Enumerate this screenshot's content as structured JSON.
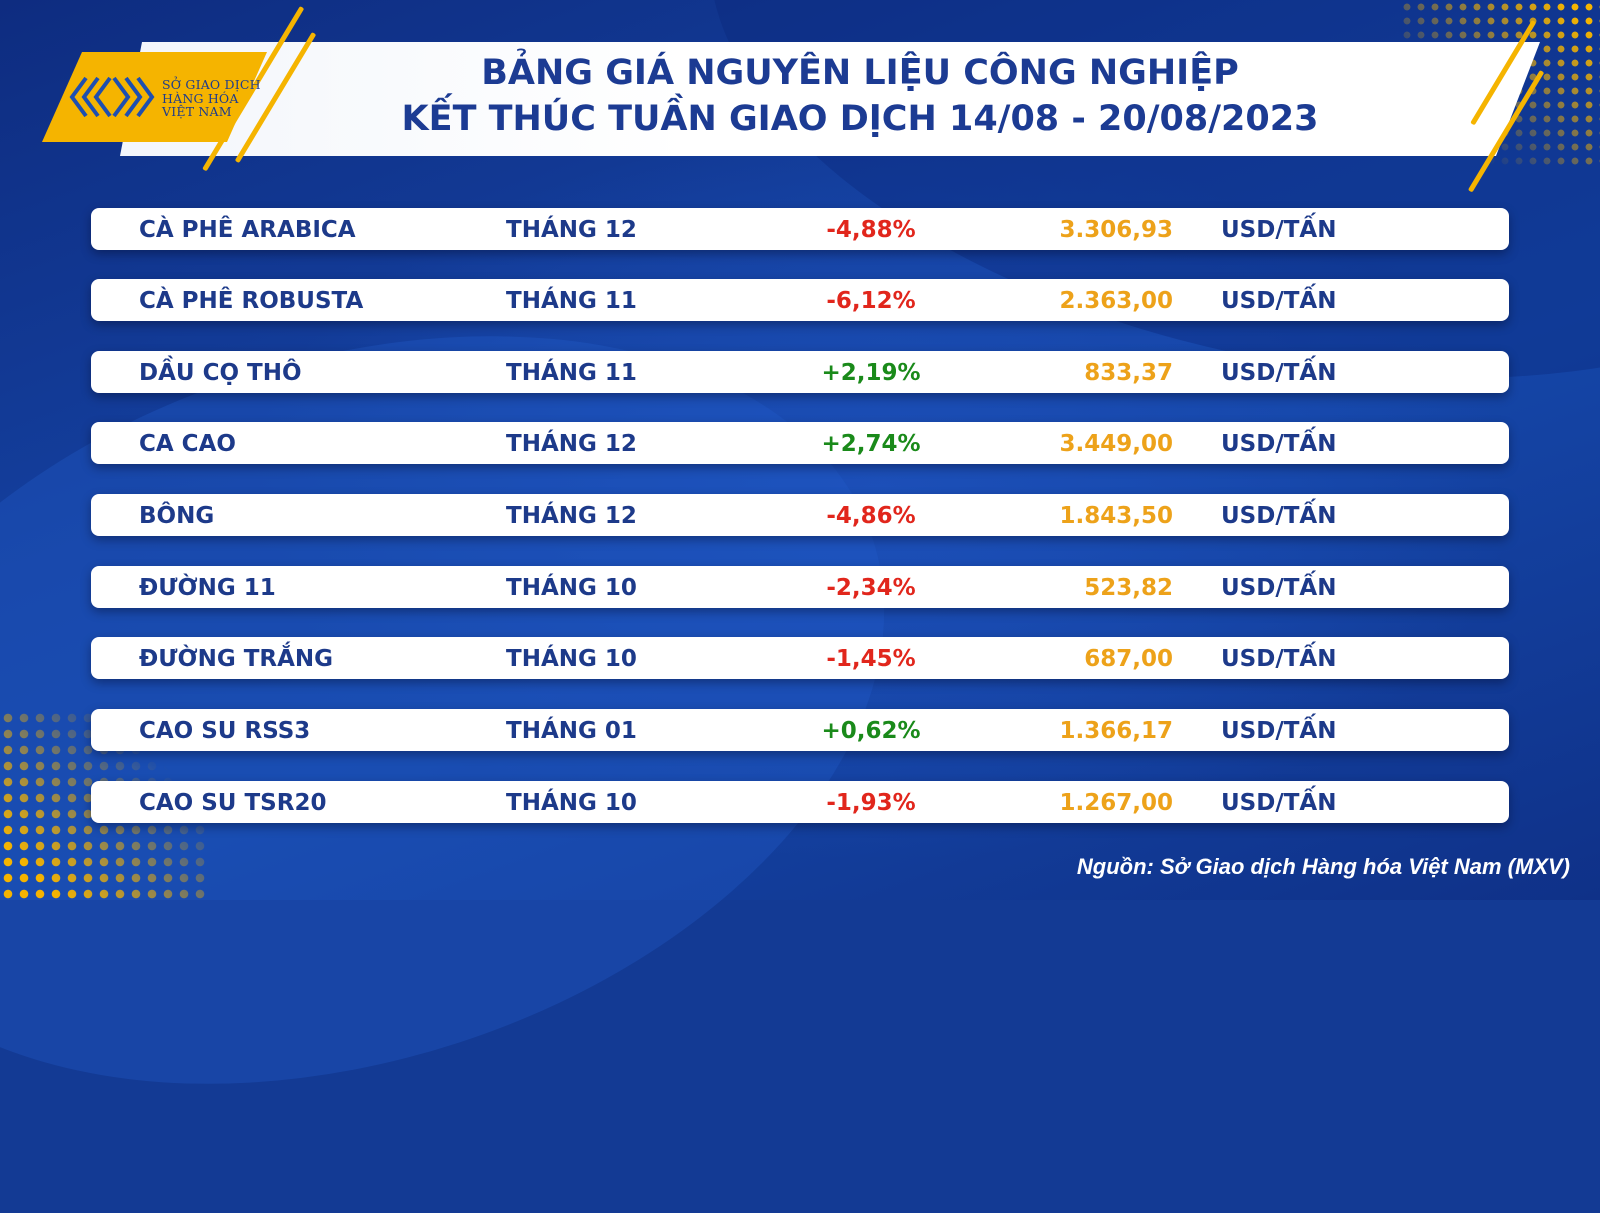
{
  "header": {
    "logo_lines": [
      "SỞ GIAO DỊCH",
      "HÀNG HÓA",
      "VIỆT NAM"
    ],
    "title_line1": "BẢNG GIÁ NGUYÊN LIỆU CÔNG NGHIỆP",
    "title_line2": "KẾT THÚC TUẦN GIAO DỊCH 14/08 - 20/08/2023"
  },
  "table": {
    "rows": [
      {
        "name": "CÀ PHÊ ARABICA",
        "month": "THÁNG 12",
        "change": "-4,88%",
        "direction": "down",
        "price": "3.306,93",
        "unit": "USD/TẤN"
      },
      {
        "name": "CÀ PHÊ ROBUSTA",
        "month": "THÁNG 11",
        "change": "-6,12%",
        "direction": "down",
        "price": "2.363,00",
        "unit": "USD/TẤN"
      },
      {
        "name": "DẦU CỌ THÔ",
        "month": "THÁNG 11",
        "change": "+2,19%",
        "direction": "up",
        "price": "833,37",
        "unit": "USD/TẤN"
      },
      {
        "name": "CA CAO",
        "month": "THÁNG 12",
        "change": "+2,74%",
        "direction": "up",
        "price": "3.449,00",
        "unit": "USD/TẤN"
      },
      {
        "name": "BÔNG",
        "month": "THÁNG 12",
        "change": "-4,86%",
        "direction": "down",
        "price": "1.843,50",
        "unit": "USD/TẤN"
      },
      {
        "name": "ĐƯỜNG 11",
        "month": "THÁNG 10",
        "change": "-2,34%",
        "direction": "down",
        "price": "523,82",
        "unit": "USD/TẤN"
      },
      {
        "name": "ĐƯỜNG TRẮNG",
        "month": "THÁNG 10",
        "change": "-1,45%",
        "direction": "down",
        "price": "687,00",
        "unit": "USD/TẤN"
      },
      {
        "name": "CAO SU RSS3",
        "month": "THÁNG 01",
        "change": "+0,62%",
        "direction": "up",
        "price": "1.366,17",
        "unit": "USD/TẤN"
      },
      {
        "name": "CAO SU TSR20",
        "month": "THÁNG 10",
        "change": "-1,93%",
        "direction": "down",
        "price": "1.267,00",
        "unit": "USD/TẤN"
      }
    ]
  },
  "footer": {
    "source": "Nguồn: Sở Giao dịch Hàng hóa Việt Nam (MXV)"
  },
  "colors": {
    "background": "#133a94",
    "accent": "#f5b400",
    "title": "#1c3b93",
    "negative": "#e1261c",
    "positive": "#1a8a1a",
    "price": "#eda21a"
  }
}
